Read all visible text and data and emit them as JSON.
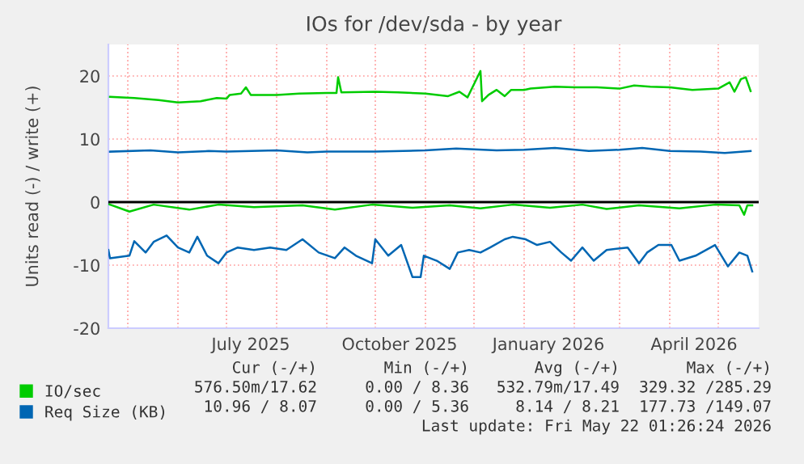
{
  "chart_data": {
    "type": "line",
    "title": "IOs for /dev/sda - by year",
    "ylabel": "Units read (-) / write (+)",
    "xlim": [
      "2025-04-19",
      "2026-05-26"
    ],
    "ylim": [
      -20,
      25
    ],
    "yticks": [
      -20,
      -10,
      0,
      10,
      20
    ],
    "xticks": [
      {
        "value": "2025-05-01",
        "label": null
      },
      {
        "value": "2025-06-01",
        "label": null
      },
      {
        "value": "2025-07-01",
        "label": null
      },
      {
        "value": "2025-07-16",
        "label": "July 2025"
      },
      {
        "value": "2025-08-01",
        "label": null
      },
      {
        "value": "2025-09-01",
        "label": null
      },
      {
        "value": "2025-10-01",
        "label": null
      },
      {
        "value": "2025-10-16",
        "label": "October 2025"
      },
      {
        "value": "2025-11-01",
        "label": null
      },
      {
        "value": "2025-12-01",
        "label": null
      },
      {
        "value": "2026-01-01",
        "label": null
      },
      {
        "value": "2026-01-16",
        "label": "January 2026"
      },
      {
        "value": "2026-02-01",
        "label": null
      },
      {
        "value": "2026-03-01",
        "label": null
      },
      {
        "value": "2026-04-01",
        "label": null
      },
      {
        "value": "2026-04-16",
        "label": "April 2026"
      },
      {
        "value": "2026-05-01",
        "label": null
      }
    ],
    "grid": true,
    "legend": "bottom left",
    "ref_lines": [
      {
        "axis": "y",
        "value": 0,
        "color": "#000000"
      }
    ],
    "series": [
      {
        "name": "IO/sec",
        "color": "#00cc00",
        "x": [
          "2025-04-20",
          "2025-05-05",
          "2025-05-20",
          "2025-06-01",
          "2025-06-15",
          "2025-06-25",
          "2025-07-01",
          "2025-07-03",
          "2025-07-10",
          "2025-07-13",
          "2025-07-16",
          "2025-08-01",
          "2025-08-15",
          "2025-09-01",
          "2025-09-07",
          "2025-09-08",
          "2025-09-10",
          "2025-10-01",
          "2025-10-15",
          "2025-11-01",
          "2025-11-15",
          "2025-11-22",
          "2025-11-27",
          "2025-12-05",
          "2025-12-06",
          "2025-12-10",
          "2025-12-15",
          "2025-12-20",
          "2025-12-24",
          "2026-01-01",
          "2026-01-05",
          "2026-01-20",
          "2026-02-01",
          "2026-02-15",
          "2026-03-01",
          "2026-03-10",
          "2026-03-20",
          "2026-04-01",
          "2026-04-15",
          "2026-05-01",
          "2026-05-08",
          "2026-05-11",
          "2026-05-15",
          "2026-05-18",
          "2026-05-21"
        ],
        "values": [
          16.7,
          16.5,
          16.2,
          15.8,
          16.0,
          16.5,
          16.4,
          17.0,
          17.2,
          18.2,
          17.0,
          17.0,
          17.2,
          17.3,
          17.3,
          19.8,
          17.4,
          17.5,
          17.4,
          17.2,
          16.8,
          17.5,
          16.6,
          20.8,
          16.0,
          17.0,
          17.8,
          16.8,
          17.8,
          17.8,
          18.0,
          18.3,
          18.2,
          18.2,
          18.0,
          18.5,
          18.3,
          18.2,
          17.8,
          18.0,
          19.0,
          17.5,
          19.5,
          19.8,
          17.6
        ]
      },
      {
        "color": "#00cc00",
        "x": [
          "2025-04-19",
          "2025-05-02",
          "2025-05-17",
          "2025-06-08",
          "2025-06-26",
          "2025-07-18",
          "2025-08-17",
          "2025-09-06",
          "2025-09-29",
          "2025-10-24",
          "2025-11-16",
          "2025-12-05",
          "2025-12-25",
          "2026-01-17",
          "2026-02-06",
          "2026-02-21",
          "2026-03-13",
          "2026-04-07",
          "2026-04-29",
          "2026-05-14",
          "2026-05-17",
          "2026-05-19",
          "2026-05-22"
        ],
        "values": [
          -0.3,
          -1.5,
          -0.4,
          -1.2,
          -0.4,
          -0.8,
          -0.5,
          -1.2,
          -0.4,
          -0.9,
          -0.5,
          -1.0,
          -0.4,
          -0.9,
          -0.4,
          -1.1,
          -0.5,
          -1.0,
          -0.4,
          -0.5,
          -2.0,
          -0.5,
          -0.5
        ]
      },
      {
        "name": "Req Size (KB)",
        "color": "#0066b3",
        "x": [
          "2025-04-20",
          "2025-05-15",
          "2025-06-01",
          "2025-06-20",
          "2025-07-01",
          "2025-08-01",
          "2025-08-20",
          "2025-09-01",
          "2025-10-01",
          "2025-11-01",
          "2025-11-20",
          "2025-12-15",
          "2026-01-01",
          "2026-01-20",
          "2026-02-10",
          "2026-03-01",
          "2026-03-15",
          "2026-04-01",
          "2026-04-20",
          "2026-05-05",
          "2026-05-21"
        ],
        "values": [
          8.0,
          8.2,
          7.9,
          8.1,
          8.0,
          8.2,
          7.9,
          8.0,
          8.0,
          8.2,
          8.5,
          8.2,
          8.3,
          8.6,
          8.1,
          8.3,
          8.6,
          8.1,
          8.0,
          7.8,
          8.1
        ]
      },
      {
        "color": "#0066b3",
        "x": [
          "2025-04-19",
          "2025-04-20",
          "2025-05-02",
          "2025-05-05",
          "2025-05-12",
          "2025-05-17",
          "2025-05-25",
          "2025-06-01",
          "2025-06-08",
          "2025-06-13",
          "2025-06-19",
          "2025-06-26",
          "2025-07-01",
          "2025-07-08",
          "2025-07-18",
          "2025-07-28",
          "2025-08-07",
          "2025-08-17",
          "2025-08-27",
          "2025-09-06",
          "2025-09-12",
          "2025-09-19",
          "2025-09-29",
          "2025-10-01",
          "2025-10-09",
          "2025-10-17",
          "2025-10-24",
          "2025-10-29",
          "2025-10-31",
          "2025-11-08",
          "2025-11-16",
          "2025-11-21",
          "2025-11-28",
          "2025-12-05",
          "2025-12-11",
          "2025-12-20",
          "2025-12-25",
          "2026-01-02",
          "2026-01-09",
          "2026-01-17",
          "2026-01-24",
          "2026-01-30",
          "2026-02-06",
          "2026-02-13",
          "2026-02-21",
          "2026-03-06",
          "2026-03-13",
          "2026-03-18",
          "2026-03-25",
          "2026-04-02",
          "2026-04-07",
          "2026-04-17",
          "2026-04-29",
          "2026-05-07",
          "2026-05-14",
          "2026-05-19",
          "2026-05-22"
        ],
        "values": [
          -7.6,
          -8.9,
          -8.5,
          -6.2,
          -8.0,
          -6.3,
          -5.3,
          -7.2,
          -8.0,
          -5.5,
          -8.5,
          -9.7,
          -8.0,
          -7.2,
          -7.6,
          -7.2,
          -7.6,
          -5.9,
          -8.0,
          -8.9,
          -7.2,
          -8.5,
          -9.7,
          -5.9,
          -8.5,
          -6.8,
          -11.9,
          -11.9,
          -8.5,
          -9.3,
          -10.6,
          -8.0,
          -7.6,
          -8.0,
          -7.2,
          -5.9,
          -5.5,
          -5.9,
          -6.8,
          -6.3,
          -8.0,
          -9.3,
          -7.2,
          -9.3,
          -7.6,
          -7.2,
          -9.7,
          -8.0,
          -6.8,
          -6.8,
          -9.3,
          -8.5,
          -6.8,
          -10.2,
          -8.0,
          -8.5,
          -11.0
        ]
      }
    ],
    "annotations": [
      "Cur (-/+)",
      "Min (-/+)",
      "Avg (-/+)",
      "Max (-/+)",
      "576.50m/17.62",
      "0.00 / 8.36",
      "532.79m/17.49",
      "329.32 /285.29",
      "10.96 / 8.07",
      "0.00 / 5.36",
      "8.14 / 8.21",
      "177.73 /149.07",
      "Last update: Fri May 22 01:26:24 2026"
    ]
  }
}
